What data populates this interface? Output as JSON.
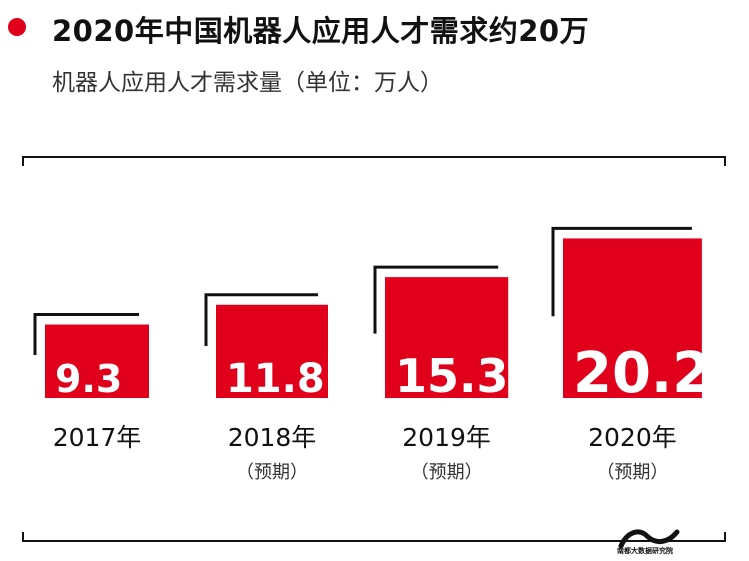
{
  "header": {
    "title": "2020年中国机器人应用人才需求约20万",
    "subtitle": "机器人应用人才需求量（单位：万人）"
  },
  "colors": {
    "accent": "#e0001b",
    "frame": "#111111"
  },
  "chart_data": {
    "type": "bar",
    "title": "2020年中国机器人应用人才需求约20万",
    "subtitle": "机器人应用人才需求量（单位：万人）",
    "categories": [
      "2017年",
      "2018年",
      "2019年",
      "2020年"
    ],
    "category_notes": [
      "",
      "（预期）",
      "（预期）",
      "（预期）"
    ],
    "values": [
      9.3,
      11.8,
      15.3,
      20.2
    ],
    "value_labels": [
      "9.3",
      "11.8",
      "15.3",
      "20.2"
    ],
    "unit": "万人",
    "grid": false,
    "legend": "none"
  },
  "footer": {
    "logo_text": "南都大数据研究院"
  }
}
